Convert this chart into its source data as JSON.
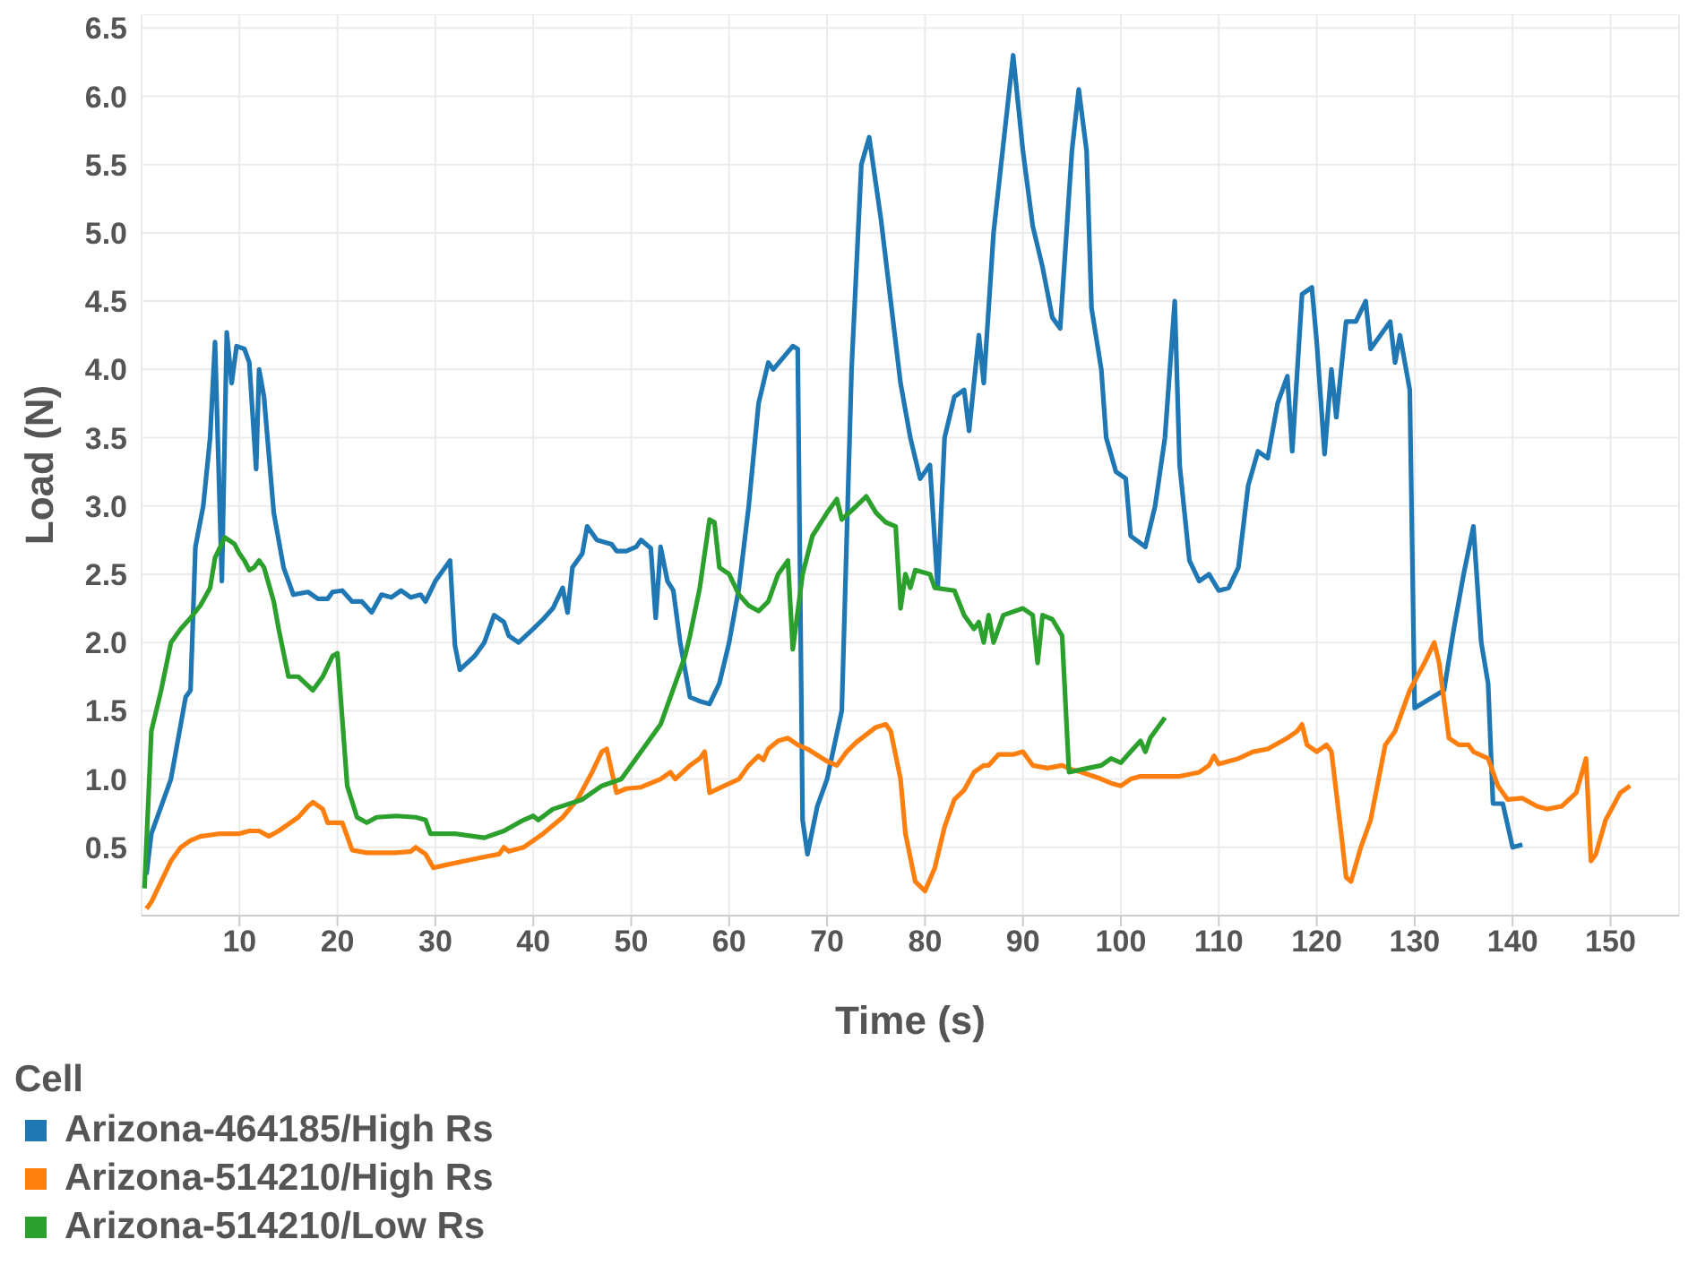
{
  "chart_data": {
    "type": "line",
    "xlabel": "Time (s)",
    "ylabel": "Load (N)",
    "legend_title": "Cell",
    "xlim": [
      0,
      157
    ],
    "ylim": [
      0,
      6.6
    ],
    "xticks": [
      10,
      20,
      30,
      40,
      50,
      60,
      70,
      80,
      90,
      100,
      110,
      120,
      130,
      140,
      150
    ],
    "yticks": [
      0.5,
      {
        "value": 1,
        "label": "1.0"
      },
      1.5,
      {
        "value": 2,
        "label": "2.0"
      },
      2.5,
      {
        "value": 3,
        "label": "3.0"
      },
      3.5,
      {
        "value": 4,
        "label": "4.0"
      },
      4.5,
      {
        "value": 5,
        "label": "5.0"
      },
      5.5,
      {
        "value": 6,
        "label": "6.0"
      },
      6.5
    ],
    "grid": true,
    "legend": "bottom left",
    "marker": "none",
    "line_style": "solid",
    "series": [
      {
        "name": "Arizona-464185/High Rs",
        "color": "#1f77b4",
        "x": [
          0.5,
          1,
          2,
          3,
          4,
          4.5,
          5,
          5.5,
          6.3,
          7,
          7.5,
          8.2,
          8.7,
          9.2,
          9.7,
          10.5,
          11,
          11.7,
          12,
          12.5,
          13.5,
          14.5,
          15.5,
          17,
          18,
          19,
          19.5,
          20.5,
          21.5,
          22.5,
          23.5,
          24.5,
          25.5,
          26.5,
          27.5,
          28.5,
          29,
          30,
          31.5,
          32,
          32.5,
          34,
          35,
          36,
          37,
          37.5,
          38.5,
          40,
          41,
          42,
          43,
          43.5,
          44,
          45,
          45.5,
          46.5,
          48,
          48.5,
          49.5,
          50.5,
          51,
          52,
          52.5,
          53,
          53.7,
          54.3,
          55,
          56,
          57,
          58,
          59,
          60,
          61,
          62,
          63,
          64,
          64.5,
          66.5,
          67,
          67.5,
          68,
          69,
          70,
          71.5,
          72.5,
          73.5,
          74.3,
          75.5,
          76.5,
          77.5,
          78.5,
          79.5,
          80.5,
          81.3,
          82,
          83,
          84,
          84.5,
          85.5,
          86,
          87,
          88,
          89,
          90,
          91,
          92,
          93,
          93.8,
          95,
          95.7,
          96.5,
          97,
          98,
          98.5,
          99.5,
          100.5,
          101,
          102.5,
          103.5,
          104.5,
          105.5,
          106,
          107,
          108,
          109,
          110,
          111,
          112,
          113,
          114,
          115,
          116,
          117,
          117.5,
          118.5,
          119.5,
          120,
          120.8,
          121.5,
          122,
          123,
          124,
          125,
          125.5,
          126.5,
          127.5,
          128,
          128.5,
          129.5,
          130,
          133,
          134,
          135,
          136,
          136.8,
          137.5,
          138,
          139,
          140,
          141
        ],
        "values": [
          0.3,
          0.6,
          0.8,
          1.0,
          1.4,
          1.6,
          1.65,
          2.7,
          3.0,
          3.5,
          4.2,
          2.45,
          4.27,
          3.9,
          4.17,
          4.15,
          4.05,
          3.27,
          4.0,
          3.8,
          2.95,
          2.55,
          2.35,
          2.37,
          2.32,
          2.32,
          2.37,
          2.38,
          2.3,
          2.3,
          2.22,
          2.35,
          2.33,
          2.38,
          2.33,
          2.35,
          2.3,
          2.45,
          2.6,
          1.98,
          1.8,
          1.9,
          2.0,
          2.2,
          2.15,
          2.05,
          2.0,
          2.1,
          2.17,
          2.25,
          2.4,
          2.22,
          2.55,
          2.65,
          2.85,
          2.75,
          2.72,
          2.67,
          2.67,
          2.7,
          2.75,
          2.69,
          2.18,
          2.7,
          2.45,
          2.38,
          2.0,
          1.6,
          1.57,
          1.55,
          1.7,
          2.0,
          2.4,
          3.0,
          3.75,
          4.05,
          4.0,
          4.17,
          4.15,
          0.7,
          0.45,
          0.8,
          1.0,
          1.5,
          4.0,
          5.5,
          5.7,
          5.1,
          4.5,
          3.9,
          3.5,
          3.2,
          3.3,
          2.4,
          3.5,
          3.8,
          3.85,
          3.55,
          4.25,
          3.9,
          5.0,
          5.65,
          6.3,
          5.6,
          5.05,
          4.75,
          4.38,
          4.3,
          5.6,
          6.05,
          5.6,
          4.45,
          4.0,
          3.5,
          3.25,
          3.2,
          2.78,
          2.7,
          3.0,
          3.5,
          4.5,
          3.3,
          2.6,
          2.45,
          2.5,
          2.38,
          2.4,
          2.55,
          3.15,
          3.4,
          3.35,
          3.75,
          3.95,
          3.4,
          4.55,
          4.6,
          4.2,
          3.38,
          4.0,
          3.65,
          4.35,
          4.35,
          4.5,
          4.15,
          4.25,
          4.35,
          4.05,
          4.25,
          3.85,
          1.52,
          1.65,
          2.1,
          2.5,
          2.85,
          2.0,
          1.7,
          0.82,
          0.82,
          0.5,
          0.52
        ]
      },
      {
        "name": "Arizona-514210/High Rs",
        "color": "#ff7f0e",
        "x": [
          0.5,
          1,
          2,
          3,
          4,
          5,
          6,
          8,
          10,
          11,
          12,
          13,
          14,
          15,
          16,
          17,
          17.5,
          18.5,
          19,
          20.5,
          21.5,
          23,
          26,
          27.5,
          28,
          29,
          29.8,
          31,
          33,
          35,
          36.5,
          37,
          37.5,
          39,
          41,
          43,
          44.5,
          46,
          47,
          47.5,
          48.5,
          49.5,
          51,
          53,
          54,
          54.5,
          56,
          57,
          57.5,
          58,
          59.5,
          61,
          62,
          63,
          63.5,
          64,
          65,
          66,
          67,
          68,
          70,
          71,
          72,
          73,
          75,
          76,
          76.5,
          77.5,
          78,
          79,
          80,
          81,
          82,
          83,
          84,
          85,
          86,
          86.5,
          87.5,
          89,
          90,
          91,
          92.5,
          94,
          95,
          96,
          98,
          99,
          100,
          101,
          102,
          106,
          108,
          109,
          109.5,
          110,
          112,
          113.5,
          115,
          117,
          118,
          118.5,
          119,
          120,
          121,
          121.5,
          122.5,
          123,
          123.5,
          124.5,
          125.5,
          127,
          128,
          129.5,
          131,
          132,
          132.5,
          133.5,
          134.5,
          135.5,
          136,
          137.5,
          138.5,
          139.5,
          141,
          142.5,
          143.5,
          145,
          146.5,
          147.5,
          148,
          148.5,
          149.5,
          151,
          152
        ],
        "values": [
          0.05,
          0.1,
          0.25,
          0.4,
          0.5,
          0.55,
          0.58,
          0.6,
          0.6,
          0.62,
          0.62,
          0.58,
          0.62,
          0.67,
          0.72,
          0.8,
          0.83,
          0.78,
          0.68,
          0.68,
          0.48,
          0.46,
          0.46,
          0.47,
          0.5,
          0.45,
          0.35,
          0.37,
          0.4,
          0.43,
          0.45,
          0.5,
          0.47,
          0.5,
          0.6,
          0.72,
          0.85,
          1.05,
          1.2,
          1.22,
          0.9,
          0.93,
          0.94,
          1.0,
          1.05,
          1.0,
          1.1,
          1.15,
          1.2,
          0.9,
          0.95,
          1.0,
          1.1,
          1.17,
          1.14,
          1.22,
          1.28,
          1.3,
          1.25,
          1.22,
          1.13,
          1.1,
          1.2,
          1.27,
          1.38,
          1.4,
          1.35,
          1.0,
          0.6,
          0.25,
          0.18,
          0.35,
          0.65,
          0.85,
          0.92,
          1.05,
          1.1,
          1.1,
          1.18,
          1.18,
          1.2,
          1.1,
          1.08,
          1.1,
          1.07,
          1.05,
          1.0,
          0.97,
          0.95,
          1.0,
          1.02,
          1.02,
          1.05,
          1.1,
          1.17,
          1.11,
          1.15,
          1.2,
          1.22,
          1.3,
          1.35,
          1.4,
          1.25,
          1.2,
          1.25,
          1.2,
          0.6,
          0.28,
          0.25,
          0.5,
          0.7,
          1.25,
          1.35,
          1.65,
          1.85,
          2.0,
          1.85,
          1.3,
          1.25,
          1.25,
          1.2,
          1.15,
          0.95,
          0.85,
          0.86,
          0.8,
          0.78,
          0.8,
          0.9,
          1.15,
          0.4,
          0.45,
          0.7,
          0.9,
          0.95
        ]
      },
      {
        "name": "Arizona-514210/Low Rs",
        "color": "#2ca02c",
        "x": [
          0.3,
          1,
          2,
          3,
          4,
          5,
          6,
          7,
          7.5,
          8.5,
          9.5,
          10,
          10.5,
          11,
          11.5,
          12,
          12.5,
          13.5,
          14,
          15,
          16,
          17.5,
          18.5,
          19.5,
          20,
          21,
          22,
          23,
          24,
          26,
          28,
          29,
          29.5,
          32,
          34,
          35,
          37,
          39,
          40,
          40.5,
          42,
          45,
          47,
          49,
          50,
          51,
          52,
          53,
          54,
          55.5,
          56,
          57,
          58,
          58.5,
          59,
          60,
          61,
          62,
          63,
          64,
          65,
          66,
          66.5,
          67.5,
          68.5,
          70,
          71,
          71.5,
          73,
          74,
          75,
          76,
          77,
          77.5,
          78,
          78.5,
          79,
          80.5,
          81,
          83,
          84,
          85,
          85.5,
          86,
          86.5,
          87,
          88,
          90,
          91,
          91.5,
          92,
          93,
          94,
          94.7,
          96,
          98,
          99,
          100,
          101,
          102,
          102.5,
          103,
          104.5
        ],
        "values": [
          0.2,
          1.35,
          1.65,
          2.0,
          2.1,
          2.18,
          2.27,
          2.4,
          2.62,
          2.77,
          2.72,
          2.65,
          2.6,
          2.53,
          2.55,
          2.6,
          2.55,
          2.3,
          2.1,
          1.75,
          1.75,
          1.65,
          1.75,
          1.9,
          1.92,
          0.95,
          0.72,
          0.68,
          0.72,
          0.73,
          0.72,
          0.7,
          0.6,
          0.6,
          0.58,
          0.57,
          0.62,
          0.7,
          0.73,
          0.7,
          0.78,
          0.85,
          0.95,
          1.0,
          1.1,
          1.2,
          1.3,
          1.4,
          1.6,
          1.9,
          2.05,
          2.4,
          2.9,
          2.88,
          2.55,
          2.5,
          2.35,
          2.27,
          2.23,
          2.3,
          2.5,
          2.6,
          1.95,
          2.5,
          2.78,
          2.95,
          3.05,
          2.9,
          3.0,
          3.07,
          2.95,
          2.88,
          2.85,
          2.25,
          2.5,
          2.4,
          2.53,
          2.5,
          2.4,
          2.38,
          2.2,
          2.1,
          2.15,
          2.0,
          2.2,
          2.0,
          2.2,
          2.25,
          2.2,
          1.85,
          2.2,
          2.17,
          2.05,
          1.05,
          1.07,
          1.1,
          1.15,
          1.12,
          1.2,
          1.28,
          1.2,
          1.3,
          1.45
        ]
      }
    ]
  }
}
